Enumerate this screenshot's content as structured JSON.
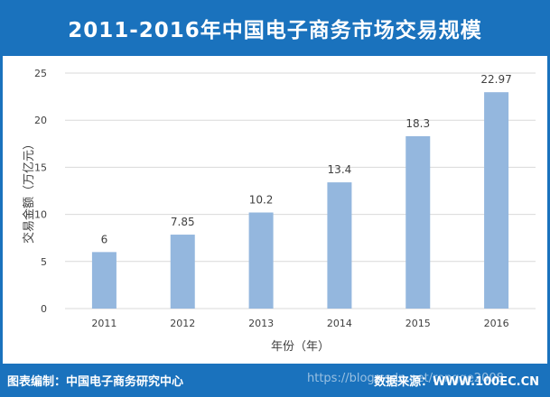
{
  "header": {
    "title": "2011-2016年中国电子商务市场交易规模"
  },
  "footer": {
    "editor": "图表编制：中国电子商务研究中心",
    "source": "数据来源：WWW.100EC.CN",
    "watermark": "https://blog.csdn.net/rongge2008"
  },
  "colors": {
    "header_bg": "#1a72bd",
    "bar": "#94b7de",
    "grid": "#d9d9d9"
  },
  "chart_data": {
    "type": "bar",
    "title": "2011-2016年中国电子商务市场交易规模",
    "xlabel": "年份（年）",
    "ylabel": "交易金额（万亿元）",
    "categories": [
      "2011",
      "2012",
      "2013",
      "2014",
      "2015",
      "2016"
    ],
    "values": [
      6,
      7.85,
      10.2,
      13.4,
      18.3,
      22.97
    ],
    "data_labels": [
      "6",
      "7.85",
      "10.2",
      "13.4",
      "18.3",
      "22.97"
    ],
    "ylim": [
      0,
      25
    ],
    "yticks": [
      0,
      5,
      10,
      15,
      20,
      25
    ],
    "grid": true,
    "legend": "none"
  }
}
